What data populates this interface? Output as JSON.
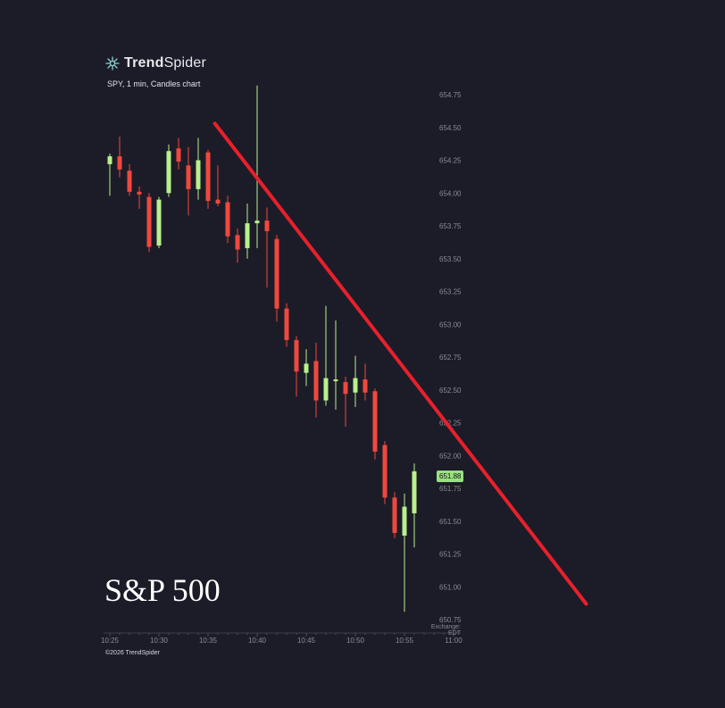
{
  "brand": {
    "name_bold": "Trend",
    "name_light": "Spider",
    "icon": "spider-logo-icon"
  },
  "subtitle": "SPY, 1 min, Candles chart",
  "overlay_label": "S&P 500",
  "footer": "©2026 TrendSpider",
  "timezone_label": "Exchange: EDT",
  "last_price_label": "651.88",
  "colors": {
    "background": "#1c1c28",
    "up": "#b9f08c",
    "down": "#f0483e",
    "trendline": "#e8202a",
    "axis_text": "#8a8a98",
    "price_badge": "#9be07f"
  },
  "chart_data": {
    "type": "candlestick",
    "title": "SPY, 1 min, Candles chart",
    "y_axis": {
      "position": "right",
      "ticks": [
        "654.75",
        "654.50",
        "654.25",
        "654.00",
        "653.75",
        "653.50",
        "653.25",
        "653.00",
        "652.75",
        "652.50",
        "652.25",
        "652.00",
        "651.75",
        "651.50",
        "651.25",
        "651.00",
        "650.75"
      ],
      "range": [
        650.75,
        654.75
      ]
    },
    "x_axis": {
      "ticks": [
        "10:25",
        "10:30",
        "10:35",
        "10:40",
        "10:45",
        "10:50",
        "10:55",
        "11:00"
      ],
      "range_minutes": [
        "10:25",
        "11:00"
      ]
    },
    "grid": false,
    "candles": [
      {
        "t": "10:25",
        "o": 654.22,
        "h": 654.3,
        "l": 653.98,
        "c": 654.28
      },
      {
        "t": "10:26",
        "o": 654.28,
        "h": 654.43,
        "l": 654.12,
        "c": 654.18
      },
      {
        "t": "10:27",
        "o": 654.17,
        "h": 654.22,
        "l": 653.98,
        "c": 654.01
      },
      {
        "t": "10:28",
        "o": 654.01,
        "h": 654.05,
        "l": 653.88,
        "c": 653.99
      },
      {
        "t": "10:29",
        "o": 653.97,
        "h": 654.0,
        "l": 653.55,
        "c": 653.59
      },
      {
        "t": "10:30",
        "o": 653.6,
        "h": 653.97,
        "l": 653.58,
        "c": 653.95
      },
      {
        "t": "10:31",
        "o": 654.0,
        "h": 654.37,
        "l": 653.97,
        "c": 654.32
      },
      {
        "t": "10:32",
        "o": 654.34,
        "h": 654.42,
        "l": 654.18,
        "c": 654.24
      },
      {
        "t": "10:33",
        "o": 654.21,
        "h": 654.35,
        "l": 653.83,
        "c": 654.03
      },
      {
        "t": "10:34",
        "o": 654.03,
        "h": 654.42,
        "l": 653.95,
        "c": 654.25
      },
      {
        "t": "10:35",
        "o": 654.31,
        "h": 654.33,
        "l": 653.88,
        "c": 653.94
      },
      {
        "t": "10:36",
        "o": 653.95,
        "h": 654.21,
        "l": 653.9,
        "c": 653.92
      },
      {
        "t": "10:37",
        "o": 653.93,
        "h": 653.98,
        "l": 653.62,
        "c": 653.67
      },
      {
        "t": "10:38",
        "o": 653.68,
        "h": 653.73,
        "l": 653.47,
        "c": 653.57
      },
      {
        "t": "10:39",
        "o": 653.58,
        "h": 653.92,
        "l": 653.5,
        "c": 653.77
      },
      {
        "t": "10:40",
        "o": 653.77,
        "h": 654.82,
        "l": 653.58,
        "c": 653.79
      },
      {
        "t": "10:41",
        "o": 653.79,
        "h": 653.89,
        "l": 653.28,
        "c": 653.71
      },
      {
        "t": "10:42",
        "o": 653.65,
        "h": 653.68,
        "l": 653.02,
        "c": 653.12
      },
      {
        "t": "10:43",
        "o": 653.12,
        "h": 653.16,
        "l": 652.83,
        "c": 652.88
      },
      {
        "t": "10:44",
        "o": 652.88,
        "h": 652.91,
        "l": 652.45,
        "c": 652.64
      },
      {
        "t": "10:45",
        "o": 652.63,
        "h": 652.81,
        "l": 652.53,
        "c": 652.7
      },
      {
        "t": "10:46",
        "o": 652.72,
        "h": 652.86,
        "l": 652.29,
        "c": 652.42
      },
      {
        "t": "10:47",
        "o": 652.42,
        "h": 653.14,
        "l": 652.38,
        "c": 652.59
      },
      {
        "t": "10:48",
        "o": 652.58,
        "h": 653.03,
        "l": 652.35,
        "c": 652.58
      },
      {
        "t": "10:49",
        "o": 652.56,
        "h": 652.6,
        "l": 652.22,
        "c": 652.47
      },
      {
        "t": "10:50",
        "o": 652.48,
        "h": 652.76,
        "l": 652.37,
        "c": 652.59
      },
      {
        "t": "10:51",
        "o": 652.58,
        "h": 652.7,
        "l": 652.42,
        "c": 652.48
      },
      {
        "t": "10:52",
        "o": 652.49,
        "h": 652.51,
        "l": 651.97,
        "c": 652.03
      },
      {
        "t": "10:53",
        "o": 652.08,
        "h": 652.11,
        "l": 651.63,
        "c": 651.68
      },
      {
        "t": "10:54",
        "o": 651.68,
        "h": 651.72,
        "l": 651.37,
        "c": 651.41
      },
      {
        "t": "10:55",
        "o": 651.39,
        "h": 651.71,
        "l": 650.81,
        "c": 651.61
      },
      {
        "t": "10:56",
        "o": 651.56,
        "h": 651.94,
        "l": 651.3,
        "c": 651.88
      }
    ],
    "trendline": {
      "from": {
        "t": "10:35.7",
        "price": 654.53
      },
      "to": {
        "t": "11:13.5",
        "price": 650.87
      }
    },
    "last_price": 651.88
  }
}
